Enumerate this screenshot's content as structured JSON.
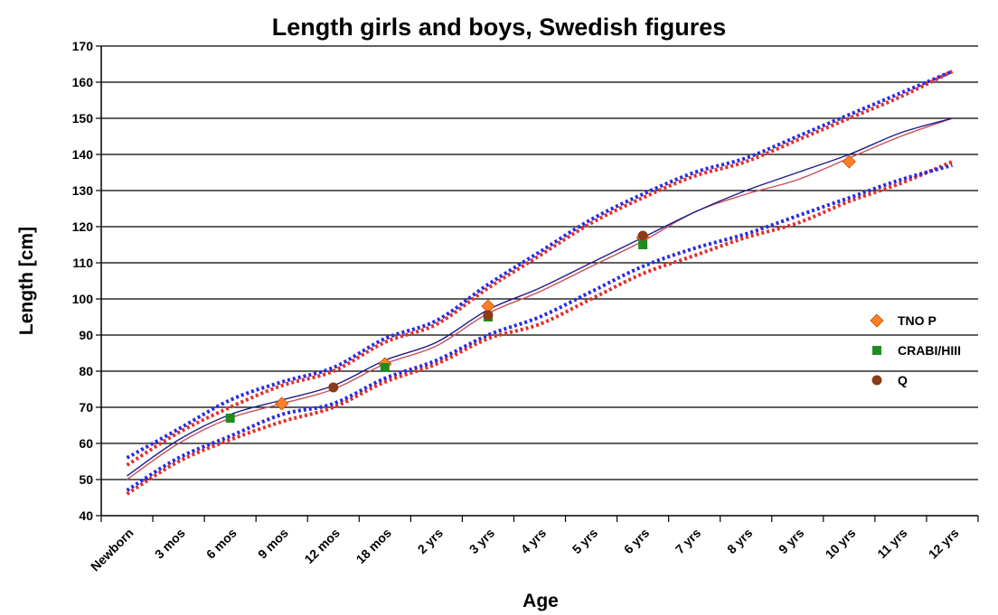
{
  "chart_data": {
    "type": "line",
    "title": "Length girls and boys, Swedish figures",
    "xlabel": "Age",
    "ylabel": "Length [cm]",
    "ylim": [
      40,
      170
    ],
    "yticks": [
      40,
      50,
      60,
      70,
      80,
      90,
      100,
      110,
      120,
      130,
      140,
      150,
      160,
      170
    ],
    "grid": "horizontal",
    "legend_position": "right",
    "categories": [
      "Newborn",
      "3 mos",
      "6 mos",
      "9 mos",
      "12 mos",
      "18 mos",
      "2 yrs",
      "3 yrs",
      "4 yrs",
      "5 yrs",
      "6 yrs",
      "7 yrs",
      "8 yrs",
      "9 yrs",
      "10 yrs",
      "11 yrs",
      "12 yrs"
    ],
    "x_positions": [
      0.5,
      1.5,
      2.5,
      3.5,
      4.5,
      5.5,
      6.5,
      7.5,
      8.5,
      9.5,
      10.5,
      11.5,
      12.5,
      13.5,
      14.5,
      15.5,
      16.5
    ],
    "series": [
      {
        "name": "",
        "style": "dotted",
        "color": "#e0302a",
        "values": [
          54,
          63,
          70,
          76,
          80,
          88,
          93,
          103,
          112,
          121,
          128,
          134,
          138,
          144,
          150,
          156,
          163
        ]
      },
      {
        "name": "",
        "style": "dotted",
        "color": "#2a2ae0",
        "values": [
          56,
          64,
          72,
          77,
          81,
          89,
          94,
          104,
          113,
          122,
          129,
          135,
          139,
          145,
          151,
          157,
          163
        ]
      },
      {
        "name": "",
        "style": "dotted",
        "color": "#e0302a",
        "values": [
          46,
          55,
          61,
          66,
          70,
          77,
          82,
          89,
          93,
          100,
          107,
          112,
          117,
          121,
          127,
          132,
          138
        ]
      },
      {
        "name": "",
        "style": "dotted",
        "color": "#2a2ae0",
        "values": [
          47,
          56,
          62,
          68,
          71,
          78,
          83,
          90,
          95,
          102,
          109,
          114,
          118,
          123,
          128,
          133,
          137
        ]
      },
      {
        "name": "",
        "style": "solid",
        "color": "#c8505a",
        "values": [
          50,
          60,
          67,
          71,
          75,
          82,
          87,
          96,
          102,
          109,
          116,
          124,
          129,
          133,
          139,
          145,
          150
        ]
      },
      {
        "name": "",
        "style": "solid",
        "color": "#1c1c8c",
        "values": [
          51,
          61,
          68,
          72,
          76,
          83,
          88,
          97,
          103,
          110,
          117,
          124,
          130,
          135,
          140,
          146,
          150
        ]
      }
    ],
    "markers": [
      {
        "name": "TNO P",
        "symbol": "diamond",
        "color": "#ff7f24",
        "points": [
          {
            "x": 3.5,
            "y": 71
          },
          {
            "x": 5.5,
            "y": 82
          },
          {
            "x": 7.5,
            "y": 98
          },
          {
            "x": 10.5,
            "y": 117
          },
          {
            "x": 14.5,
            "y": 138
          }
        ]
      },
      {
        "name": "CRABI/HIII",
        "symbol": "square",
        "color": "#1e8c1e",
        "points": [
          {
            "x": 2.5,
            "y": 67
          },
          {
            "x": 5.5,
            "y": 81
          },
          {
            "x": 7.5,
            "y": 95
          },
          {
            "x": 10.5,
            "y": 115
          }
        ]
      },
      {
        "name": "Q",
        "symbol": "circle",
        "color": "#8b3a1a",
        "points": [
          {
            "x": 4.5,
            "y": 75.5
          },
          {
            "x": 7.5,
            "y": 95.5
          },
          {
            "x": 10.5,
            "y": 117.5
          }
        ]
      }
    ]
  }
}
